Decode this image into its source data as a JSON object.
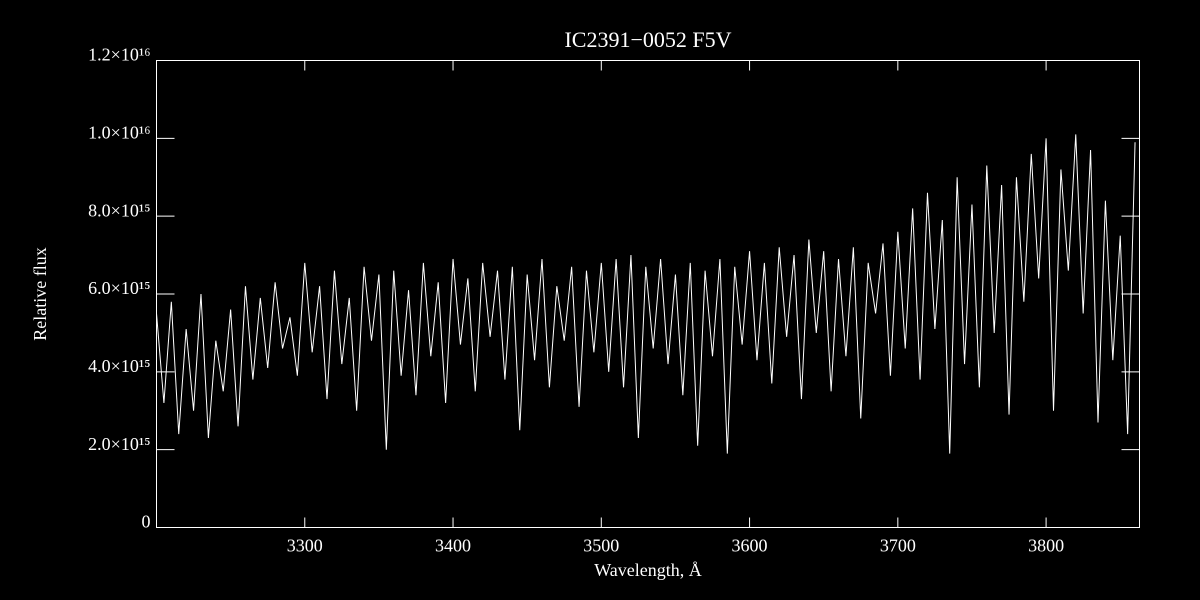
{
  "chart_data": {
    "type": "line",
    "title": "IC2391−0052  F5V",
    "xlabel": "Wavelength, Å",
    "ylabel": "Relative flux",
    "color": "#ffffff",
    "x": [
      3200,
      3205,
      3210,
      3215,
      3220,
      3225,
      3230,
      3235,
      3240,
      3245,
      3250,
      3255,
      3260,
      3265,
      3270,
      3275,
      3280,
      3285,
      3290,
      3295,
      3300,
      3305,
      3310,
      3315,
      3320,
      3325,
      3330,
      3335,
      3340,
      3345,
      3350,
      3355,
      3360,
      3365,
      3370,
      3375,
      3380,
      3385,
      3390,
      3395,
      3400,
      3405,
      3410,
      3415,
      3420,
      3425,
      3430,
      3435,
      3440,
      3445,
      3450,
      3455,
      3460,
      3465,
      3470,
      3475,
      3480,
      3485,
      3490,
      3495,
      3500,
      3505,
      3510,
      3515,
      3520,
      3525,
      3530,
      3535,
      3540,
      3545,
      3550,
      3555,
      3560,
      3565,
      3570,
      3575,
      3580,
      3585,
      3590,
      3595,
      3600,
      3605,
      3610,
      3615,
      3620,
      3625,
      3630,
      3635,
      3640,
      3645,
      3650,
      3655,
      3660,
      3665,
      3670,
      3675,
      3680,
      3685,
      3690,
      3695,
      3700,
      3705,
      3710,
      3715,
      3720,
      3725,
      3730,
      3735,
      3740,
      3745,
      3750,
      3755,
      3760,
      3765,
      3770,
      3775,
      3780,
      3785,
      3790,
      3795,
      3800,
      3805,
      3810,
      3815,
      3820,
      3825,
      3830,
      3835,
      3840,
      3845,
      3850,
      3855,
      3860
    ],
    "values": [
      5500000000000000.0,
      3200000000000000.0,
      5800000000000000.0,
      2400000000000000.0,
      5100000000000000.0,
      3000000000000000.0,
      6000000000000000.0,
      2300000000000000.0,
      4800000000000000.0,
      3500000000000000.0,
      5600000000000000.0,
      2600000000000000.0,
      6200000000000000.0,
      3800000000000000.0,
      5900000000000000.0,
      4100000000000000.0,
      6300000000000000.0,
      4600000000000000.0,
      5400000000000000.0,
      3900000000000000.0,
      6800000000000000.0,
      4500000000000000.0,
      6200000000000000.0,
      3300000000000000.0,
      6600000000000000.0,
      4200000000000000.0,
      5900000000000000.0,
      3000000000000000.0,
      6700000000000000.0,
      4800000000000000.0,
      6500000000000000.0,
      2000000000000000.0,
      6600000000000000.0,
      3900000000000000.0,
      6100000000000000.0,
      3400000000000000.0,
      6800000000000000.0,
      4400000000000000.0,
      6300000000000000.0,
      3200000000000000.0,
      6900000000000000.0,
      4700000000000000.0,
      6400000000000000.0,
      3500000000000000.0,
      6800000000000000.0,
      4900000000000000.0,
      6600000000000000.0,
      3800000000000000.0,
      6700000000000000.0,
      2500000000000000.0,
      6500000000000000.0,
      4300000000000000.0,
      6900000000000000.0,
      3600000000000000.0,
      6200000000000000.0,
      4800000000000000.0,
      6700000000000000.0,
      3100000000000000.0,
      6600000000000000.0,
      4500000000000000.0,
      6800000000000000.0,
      4000000000000000.0,
      6900000000000000.0,
      3600000000000000.0,
      7000000000000000.0,
      2300000000000000.0,
      6700000000000000.0,
      4600000000000000.0,
      6900000000000000.0,
      4200000000000000.0,
      6500000000000000.0,
      3400000000000000.0,
      6800000000000000.0,
      2100000000000000.0,
      6600000000000000.0,
      4400000000000000.0,
      6900000000000000.0,
      1900000000000000.0,
      6700000000000000.0,
      4700000000000000.0,
      7100000000000000.0,
      4300000000000000.0,
      6800000000000000.0,
      3700000000000000.0,
      7200000000000000.0,
      4900000000000000.0,
      7000000000000000.0,
      3300000000000000.0,
      7400000000000000.0,
      5000000000000000.0,
      7100000000000000.0,
      3500000000000000.0,
      6900000000000000.0,
      4400000000000000.0,
      7200000000000000.0,
      2800000000000000.0,
      6800000000000000.0,
      5500000000000000.0,
      7300000000000000.0,
      3900000000000000.0,
      7600000000000000.0,
      4600000000000000.0,
      8200000000000000.0,
      3800000000000000.0,
      8600000000000000.0,
      5100000000000000.0,
      7900000000000000.0,
      1900000000000000.0,
      9000000000000000.0,
      4200000000000000.0,
      8300000000000000.0,
      3600000000000000.0,
      9300000000000000.0,
      5000000000000000.0,
      8800000000000000.0,
      2900000000000000.0,
      9000000000000000.0,
      5800000000000000.0,
      9600000000000000.0,
      6400000000000000.0,
      1e+16,
      3000000000000000.0,
      9200000000000000.0,
      6600000000000000.0,
      1.01e+16,
      5500000000000000.0,
      9700000000000000.0,
      2700000000000000.0,
      8400000000000000.0,
      4300000000000000.0,
      7500000000000000.0,
      2400000000000000.0,
      9900000000000000.0
    ],
    "xlim": [
      3200,
      3863
    ],
    "xticks": [
      3300,
      3400,
      3500,
      3600,
      3700,
      3800
    ],
    "ylim": [
      0,
      1.2e+16
    ],
    "yticks": [
      0,
      {
        "value": 2000000000000000.0,
        "label": "2.0×10¹⁵"
      },
      {
        "value": 4000000000000000.0,
        "label": "4.0×10¹⁵"
      },
      {
        "value": 6000000000000000.0,
        "label": "6.0×10¹⁵"
      },
      {
        "value": 8000000000000000.0,
        "label": "8.0×10¹⁵"
      },
      {
        "value": 1e+16,
        "label": "1.0×10¹⁶"
      },
      {
        "value": 1.2e+16,
        "label": "1.2×10¹⁶"
      }
    ]
  }
}
